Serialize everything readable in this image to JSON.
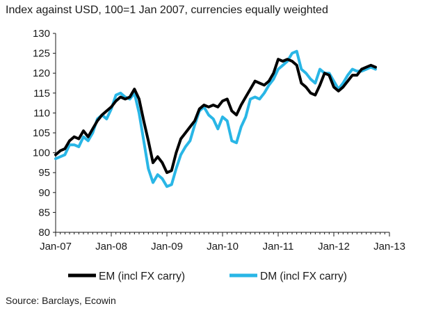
{
  "chart_data": {
    "type": "line",
    "title": "Index against USD, 100=1 Jan 2007, currencies equally weighted",
    "source": "Source: Barclays, Ecowin",
    "ylim": [
      80,
      130
    ],
    "y_ticks": [
      80,
      85,
      90,
      95,
      100,
      105,
      110,
      115,
      120,
      125,
      130
    ],
    "x_tick_labels": [
      "Jan-07",
      "Jan-08",
      "Jan-09",
      "Jan-10",
      "Jan-11",
      "Jan-12",
      "Jan-13"
    ],
    "x_unit": "months since Jan-07",
    "grid": false,
    "legend_position": "bottom",
    "series": [
      {
        "name": "EM (incl FX carry)",
        "color": "#000000",
        "points": [
          [
            0,
            99.5
          ],
          [
            1,
            100.5
          ],
          [
            2,
            101
          ],
          [
            3,
            103
          ],
          [
            4,
            104
          ],
          [
            5,
            103.5
          ],
          [
            6,
            105.5
          ],
          [
            7,
            104
          ],
          [
            8,
            106
          ],
          [
            9,
            108
          ],
          [
            10,
            109.5
          ],
          [
            11,
            110.5
          ],
          [
            12,
            111.5
          ],
          [
            13,
            113
          ],
          [
            14,
            114
          ],
          [
            15,
            113.5
          ],
          [
            16,
            114
          ],
          [
            17,
            116
          ],
          [
            18,
            113.5
          ],
          [
            19,
            108
          ],
          [
            20,
            103
          ],
          [
            21,
            97.5
          ],
          [
            22,
            99
          ],
          [
            23,
            97.5
          ],
          [
            24,
            95
          ],
          [
            25,
            95.5
          ],
          [
            26,
            100
          ],
          [
            27,
            103.5
          ],
          [
            28,
            105
          ],
          [
            29,
            106.5
          ],
          [
            30,
            108
          ],
          [
            31,
            111
          ],
          [
            32,
            112
          ],
          [
            33,
            111.5
          ],
          [
            34,
            112
          ],
          [
            35,
            111.5
          ],
          [
            36,
            113
          ],
          [
            37,
            113.5
          ],
          [
            38,
            110.5
          ],
          [
            39,
            109.5
          ],
          [
            40,
            112
          ],
          [
            41,
            114
          ],
          [
            42,
            116
          ],
          [
            43,
            118
          ],
          [
            44,
            117.5
          ],
          [
            45,
            117
          ],
          [
            46,
            118
          ],
          [
            47,
            120
          ],
          [
            48,
            123.5
          ],
          [
            49,
            123
          ],
          [
            50,
            123.5
          ],
          [
            51,
            123
          ],
          [
            52,
            122
          ],
          [
            53,
            117.5
          ],
          [
            54,
            116.5
          ],
          [
            55,
            115
          ],
          [
            56,
            114.5
          ],
          [
            57,
            117
          ],
          [
            58,
            120
          ],
          [
            59,
            119.5
          ],
          [
            60,
            116.5
          ],
          [
            61,
            115.5
          ],
          [
            62,
            116.5
          ],
          [
            63,
            118
          ],
          [
            64,
            119.5
          ],
          [
            65,
            119.5
          ],
          [
            66,
            121
          ],
          [
            67,
            121.5
          ],
          [
            68,
            122
          ],
          [
            69,
            121.5
          ]
        ]
      },
      {
        "name": "DM (incl FX carry)",
        "color": "#29b6e6",
        "points": [
          [
            0,
            98.5
          ],
          [
            1,
            99
          ],
          [
            2,
            99.5
          ],
          [
            3,
            102
          ],
          [
            4,
            102
          ],
          [
            5,
            101.5
          ],
          [
            6,
            104
          ],
          [
            7,
            103
          ],
          [
            8,
            105
          ],
          [
            9,
            108.5
          ],
          [
            10,
            109.5
          ],
          [
            11,
            108.5
          ],
          [
            12,
            111
          ],
          [
            13,
            114.5
          ],
          [
            14,
            115
          ],
          [
            15,
            114
          ],
          [
            16,
            113.5
          ],
          [
            17,
            115
          ],
          [
            18,
            110
          ],
          [
            19,
            103
          ],
          [
            20,
            96
          ],
          [
            21,
            92.5
          ],
          [
            22,
            94.5
          ],
          [
            23,
            93.5
          ],
          [
            24,
            91.5
          ],
          [
            25,
            92
          ],
          [
            26,
            96
          ],
          [
            27,
            99.5
          ],
          [
            28,
            101.5
          ],
          [
            29,
            103
          ],
          [
            30,
            107
          ],
          [
            31,
            110.5
          ],
          [
            32,
            111.5
          ],
          [
            33,
            109.5
          ],
          [
            34,
            108.5
          ],
          [
            35,
            106
          ],
          [
            36,
            109
          ],
          [
            37,
            108
          ],
          [
            38,
            103
          ],
          [
            39,
            102.5
          ],
          [
            40,
            106.5
          ],
          [
            41,
            109
          ],
          [
            42,
            113.5
          ],
          [
            43,
            114
          ],
          [
            44,
            113.5
          ],
          [
            45,
            115
          ],
          [
            46,
            117
          ],
          [
            47,
            118.5
          ],
          [
            48,
            121
          ],
          [
            49,
            122
          ],
          [
            50,
            123
          ],
          [
            51,
            125
          ],
          [
            52,
            125.5
          ],
          [
            53,
            121
          ],
          [
            54,
            120
          ],
          [
            55,
            118.5
          ],
          [
            56,
            117.5
          ],
          [
            57,
            121
          ],
          [
            58,
            120
          ],
          [
            59,
            120
          ],
          [
            60,
            118
          ],
          [
            61,
            116
          ],
          [
            62,
            117.5
          ],
          [
            63,
            119.5
          ],
          [
            64,
            121
          ],
          [
            65,
            120.5
          ],
          [
            66,
            120.5
          ],
          [
            67,
            121
          ],
          [
            68,
            121.5
          ],
          [
            69,
            121
          ]
        ]
      }
    ]
  }
}
